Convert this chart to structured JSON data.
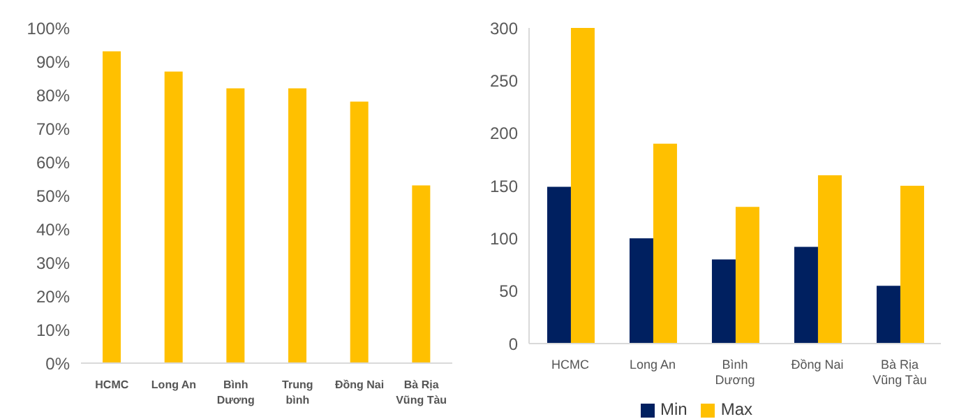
{
  "chart_data": [
    {
      "type": "bar",
      "categories": [
        "HCMC",
        "Long An",
        "Bình Dương",
        "Trung bình",
        "Đồng Nai",
        "Bà Rịa Vũng Tàu"
      ],
      "values": [
        93,
        87,
        82,
        82,
        78,
        53
      ],
      "color": "#ffc000",
      "ylim": [
        0,
        100
      ],
      "yticks": [
        {
          "value": 0,
          "label": "0%"
        },
        {
          "value": 10,
          "label": "10%"
        },
        {
          "value": 20,
          "label": "20%"
        },
        {
          "value": 30,
          "label": "30%"
        },
        {
          "value": 40,
          "label": "40%"
        },
        {
          "value": 50,
          "label": "50%"
        },
        {
          "value": 60,
          "label": "60%"
        },
        {
          "value": 70,
          "label": "70%"
        },
        {
          "value": 80,
          "label": "80%"
        },
        {
          "value": 90,
          "label": "90%"
        },
        {
          "value": 100,
          "label": "100%"
        }
      ],
      "grid": false,
      "legend": false
    },
    {
      "type": "bar",
      "categories": [
        "HCMC",
        "Long An",
        "Bình Dương",
        "Đồng Nai",
        "Bà Rịa Vũng Tàu"
      ],
      "series": [
        {
          "name": "Min",
          "color": "#002060",
          "values": [
            149,
            100,
            80,
            92,
            55
          ]
        },
        {
          "name": "Max",
          "color": "#ffc000",
          "values": [
            300,
            190,
            130,
            160,
            150
          ]
        }
      ],
      "ylim": [
        0,
        300
      ],
      "yticks": [
        0,
        50,
        100,
        150,
        200,
        250,
        300
      ],
      "grid": false,
      "legend": "bottom"
    }
  ]
}
